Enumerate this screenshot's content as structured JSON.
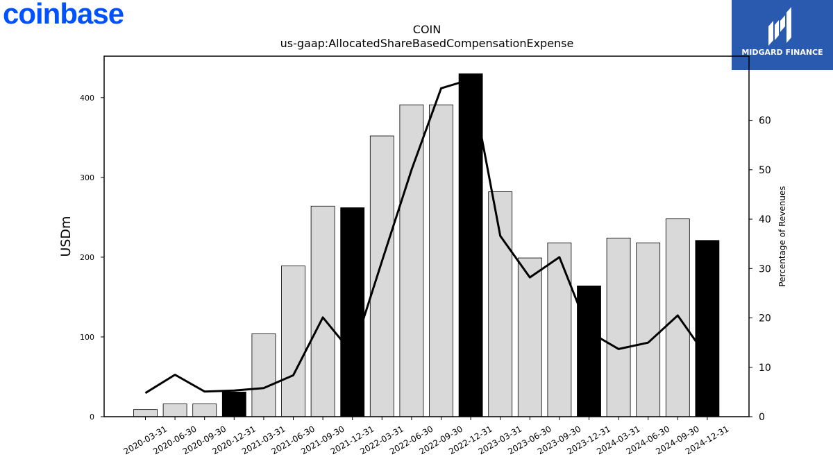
{
  "branding": {
    "company_logo_text": "coinbase",
    "company_logo_color": "#0052ff",
    "publisher_name": "MIDGARD FINANCE",
    "publisher_color": "#2a5ab0"
  },
  "chart_data": {
    "type": "bar",
    "title": "COIN",
    "subtitle": "us-gaap:AllocatedShareBasedCompensationExpense",
    "ylabel": "USDm",
    "y2label": "Percentage of Revenues",
    "ylim": [
      0,
      452
    ],
    "y2lim": [
      0,
      73
    ],
    "yticks": [
      "0",
      "100",
      "200",
      "300",
      "400"
    ],
    "y2ticks": [
      "0",
      "10",
      "20",
      "30",
      "40",
      "50",
      "60"
    ],
    "categories": [
      "2020-03-31",
      "2020-06-30",
      "2020-09-30",
      "2020-12-31",
      "2021-03-31",
      "2021-06-30",
      "2021-09-30",
      "2021-12-31",
      "2022-03-31",
      "2022-06-30",
      "2022-09-30",
      "2022-12-31",
      "2023-03-31",
      "2023-06-30",
      "2023-09-30",
      "2023-12-31",
      "2024-03-31",
      "2024-06-30",
      "2024-09-30",
      "2024-12-31"
    ],
    "series": [
      {
        "type": "bar",
        "axis": "left",
        "values": [
          9,
          16,
          16,
          31,
          104,
          189,
          264,
          262,
          352,
          391,
          391,
          430,
          282,
          199,
          218,
          164,
          224,
          218,
          248,
          221
        ],
        "highlight": [
          false,
          false,
          false,
          true,
          false,
          false,
          false,
          true,
          false,
          false,
          false,
          true,
          false,
          false,
          false,
          true,
          false,
          false,
          false,
          true
        ],
        "color": "#d9d9d9",
        "highlight_color": "#000000"
      },
      {
        "type": "line",
        "axis": "right",
        "values": [
          4.8,
          8.5,
          5.1,
          5.3,
          5.8,
          8.4,
          20.1,
          12.8,
          31.5,
          50.0,
          66.5,
          68.3,
          36.6,
          28.2,
          32.3,
          17.2,
          13.7,
          15.0,
          20.5,
          12.0
        ],
        "color": "#000000"
      }
    ],
    "grid": false,
    "legend": "none"
  }
}
